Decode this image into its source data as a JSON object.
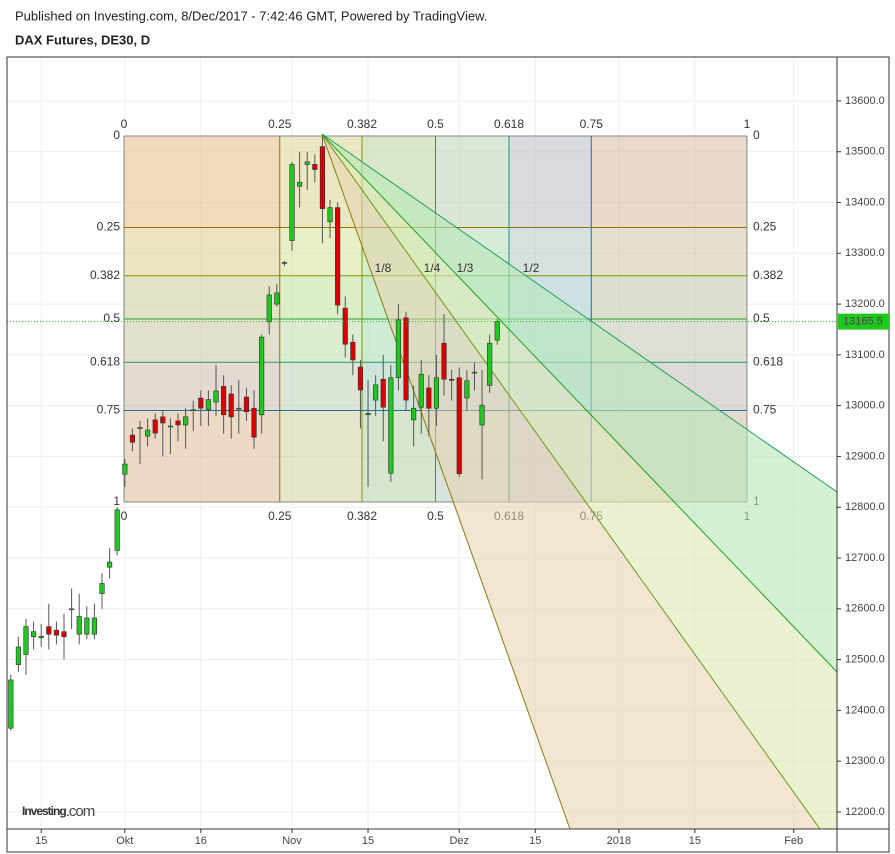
{
  "chart_data": {
    "type": "candlestick",
    "subtitle": "Published on Investing.com, 8/Dec/2017 - 7:42:46 GMT, Powered by TradingView.",
    "title": "DAX Futures, DE30, D",
    "watermark": "Investing",
    "watermark_suffix": ".com",
    "up_color": "#1ec81e",
    "down_color": "#dd0000",
    "x": [
      0,
      1,
      2,
      3,
      4,
      5,
      6,
      7,
      8,
      9,
      10,
      11,
      12,
      13,
      14,
      15,
      16,
      17,
      18,
      19,
      20,
      21,
      22,
      23,
      24,
      25,
      26,
      27,
      28,
      29,
      30,
      31,
      32,
      33,
      34,
      35,
      36,
      37,
      38,
      39,
      40,
      41,
      42,
      43,
      44,
      45,
      46,
      47,
      48,
      49,
      50,
      51,
      52,
      53,
      54,
      55,
      56,
      57,
      58,
      59,
      60,
      61,
      62,
      63,
      64
    ],
    "open": [
      12365,
      12490,
      12510,
      12545,
      12543,
      12565,
      12558,
      12555,
      12600,
      12550,
      12550,
      12550,
      12630,
      12682,
      12715,
      12865,
      12942,
      12955,
      12940,
      12972,
      12978,
      12960,
      12970,
      12962,
      12992,
      13015,
      12992,
      13007,
      13038,
      13023,
      12995,
      13017,
      12995,
      12982,
      13165,
      13200,
      13280,
      13325,
      13432,
      13475,
      13475,
      13510,
      13362,
      13390,
      13192,
      13125,
      13076,
      12982,
      13011,
      13052,
      12867,
      13055,
      13173,
      12972,
      12997,
      13035,
      12995,
      13123,
      13052,
      13055,
      13015,
      13065,
      12962,
      13040,
      13129
    ],
    "high": [
      12470,
      12545,
      12580,
      12575,
      12570,
      12610,
      12575,
      12590,
      12640,
      12630,
      12605,
      12610,
      12670,
      12720,
      12800,
      12895,
      12955,
      12970,
      12975,
      12985,
      12990,
      12975,
      12985,
      12995,
      13010,
      13030,
      13030,
      13080,
      13060,
      13040,
      13050,
      13035,
      13030,
      13140,
      13235,
      13240,
      13285,
      13480,
      13500,
      13500,
      13495,
      13530,
      13405,
      13400,
      13215,
      13140,
      13090,
      13050,
      13060,
      13100,
      13080,
      13200,
      13185,
      13040,
      13090,
      13060,
      13100,
      13180,
      13070,
      13075,
      13070,
      13085,
      13070,
      13140,
      13170
    ],
    "low": [
      12360,
      12475,
      12470,
      12520,
      12525,
      12520,
      12530,
      12500,
      12560,
      12530,
      12540,
      12540,
      12600,
      12660,
      12705,
      12840,
      12910,
      12885,
      12920,
      12935,
      12900,
      12905,
      12930,
      12915,
      12950,
      12960,
      12960,
      12980,
      12945,
      12935,
      12945,
      12970,
      12915,
      12945,
      13140,
      13195,
      13275,
      13305,
      13390,
      13425,
      13440,
      13320,
      13330,
      13180,
      13095,
      13060,
      12955,
      12840,
      12980,
      12930,
      12850,
      13030,
      12990,
      12920,
      12945,
      12940,
      12960,
      13020,
      13010,
      12860,
      12990,
      13030,
      12855,
      13025,
      13120
    ],
    "close": [
      12460,
      12525,
      12565,
      12555,
      12546,
      12550,
      12548,
      12545,
      12600,
      12585,
      12582,
      12582,
      12650,
      12692,
      12795,
      12885,
      12928,
      12957,
      12952,
      12946,
      12966,
      12960,
      12962,
      12978,
      12992,
      12995,
      13012,
      13029,
      12982,
      12978,
      12995,
      12988,
      12938,
      13135,
      13218,
      13222,
      13282,
      13475,
      13440,
      13480,
      13465,
      13388,
      13390,
      13198,
      13121,
      13090,
      13031,
      12985,
      13041,
      12997,
      13055,
      13169,
      13011,
      12995,
      13062,
      12995,
      13055,
      13052,
      13050,
      12866,
      13049,
      13066,
      13001,
      13123,
      13166
    ],
    "last_price": 13165.5,
    "last_price_color": "#1ec81e",
    "xlim": [
      -0.5,
      108.7
    ],
    "xticks": [
      {
        "value": 4,
        "label": "15"
      },
      {
        "value": 15,
        "label": "Okt"
      },
      {
        "value": 25,
        "label": "16"
      },
      {
        "value": 37,
        "label": "Nov"
      },
      {
        "value": 47,
        "label": "15"
      },
      {
        "value": 59,
        "label": "Dez"
      },
      {
        "value": 69,
        "label": "15"
      },
      {
        "value": 80,
        "label": "2018"
      },
      {
        "value": 90,
        "label": "15"
      },
      {
        "value": 103,
        "label": "Feb"
      }
    ],
    "ylim": [
      12166.5,
      13686.5
    ],
    "yticks": [
      {
        "value": 12200,
        "label": "12200.0"
      },
      {
        "value": 12300,
        "label": "12300.0"
      },
      {
        "value": 12400,
        "label": "12400.0"
      },
      {
        "value": 12500,
        "label": "12500.0"
      },
      {
        "value": 12600,
        "label": "12600.0"
      },
      {
        "value": 12700,
        "label": "12700.0"
      },
      {
        "value": 12800,
        "label": "12800.0"
      },
      {
        "value": 12900,
        "label": "12900.0"
      },
      {
        "value": 13000,
        "label": "13000.0"
      },
      {
        "value": 13100,
        "label": "13100.0"
      },
      {
        "value": 13200,
        "label": "13200.0"
      },
      {
        "value": 13300,
        "label": "13300.0"
      },
      {
        "value": 13400,
        "label": "13400.0"
      },
      {
        "value": 13500,
        "label": "13500.0"
      },
      {
        "value": 13600,
        "label": "13600.0"
      }
    ],
    "grid": true,
    "fib_levels": [
      0,
      0.25,
      0.382,
      0.5,
      0.618,
      0.75,
      1
    ],
    "fib_colors": [
      "#888888",
      "#9a7000",
      "#7a9a01",
      "#2e9e2e",
      "#1a9a6a",
      "#1f6f9f",
      "#888888"
    ],
    "fib_fills": [
      "#e6b47a",
      "#cfe08a",
      "#9fde9a",
      "#9fd8c0",
      "#9fb8d8",
      "#c8b4a0"
    ],
    "fan_labels": [
      "1/8",
      "1/4",
      "1/3",
      "1/2"
    ],
    "fan_colors": [
      "#8a7a10",
      "#6a9a10",
      "#20a020",
      "#20a060"
    ]
  }
}
